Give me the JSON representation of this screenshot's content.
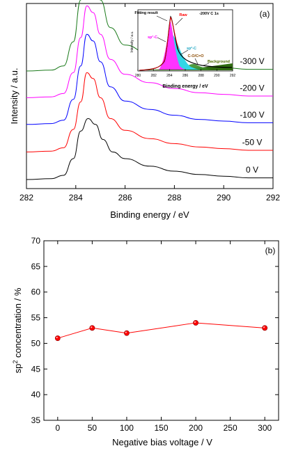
{
  "chart_data": [
    {
      "type": "line",
      "panel_label": "(a)",
      "xlabel": "Binding energy / eV",
      "ylabel": "Intensity / a.u.",
      "xlim": [
        282,
        292
      ],
      "x_ticks": [
        "282",
        "284",
        "286",
        "288",
        "290",
        "292"
      ],
      "y_ticks_shown": false,
      "series": [
        {
          "name": "0 V",
          "color": "#000000",
          "baseline": 0.0,
          "points": [
            [
              282,
              0
            ],
            [
              283,
              0.01
            ],
            [
              283.5,
              0.05
            ],
            [
              283.9,
              0.25
            ],
            [
              284.2,
              0.58
            ],
            [
              284.5,
              0.73
            ],
            [
              284.8,
              0.66
            ],
            [
              285.1,
              0.48
            ],
            [
              285.5,
              0.33
            ],
            [
              286,
              0.25
            ],
            [
              287,
              0.16
            ],
            [
              288,
              0.1
            ],
            [
              289,
              0.06
            ],
            [
              290,
              0.04
            ],
            [
              291,
              0.02
            ],
            [
              292,
              0.02
            ]
          ]
        },
        {
          "name": "-50 V",
          "color": "#ff0000",
          "baseline": 0.33,
          "points": [
            [
              282,
              0
            ],
            [
              283,
              0.01
            ],
            [
              283.5,
              0.05
            ],
            [
              283.9,
              0.27
            ],
            [
              284.2,
              0.6
            ],
            [
              284.45,
              0.95
            ],
            [
              284.7,
              0.88
            ],
            [
              285,
              0.65
            ],
            [
              285.4,
              0.4
            ],
            [
              286,
              0.26
            ],
            [
              287,
              0.16
            ],
            [
              288,
              0.1
            ],
            [
              289,
              0.06
            ],
            [
              290,
              0.04
            ],
            [
              291,
              0.02
            ],
            [
              292,
              0.02
            ]
          ]
        },
        {
          "name": "-100 V",
          "color": "#0000ff",
          "baseline": 0.66,
          "points": [
            [
              282,
              0
            ],
            [
              283,
              0.01
            ],
            [
              283.5,
              0.05
            ],
            [
              283.9,
              0.3
            ],
            [
              284.2,
              0.7
            ],
            [
              284.45,
              1.08
            ],
            [
              284.7,
              1.0
            ],
            [
              285,
              0.75
            ],
            [
              285.4,
              0.45
            ],
            [
              286,
              0.28
            ],
            [
              287,
              0.18
            ],
            [
              288,
              0.11
            ],
            [
              289,
              0.06
            ],
            [
              290,
              0.04
            ],
            [
              291,
              0.02
            ],
            [
              292,
              0.02
            ]
          ]
        },
        {
          "name": "-200 V",
          "color": "#ff00ff",
          "baseline": 0.98,
          "points": [
            [
              282,
              0
            ],
            [
              283,
              0.01
            ],
            [
              283.5,
              0.05
            ],
            [
              283.9,
              0.3
            ],
            [
              284.2,
              0.72
            ],
            [
              284.45,
              1.1
            ],
            [
              284.7,
              1.02
            ],
            [
              285,
              0.76
            ],
            [
              285.4,
              0.46
            ],
            [
              286,
              0.28
            ],
            [
              287,
              0.18
            ],
            [
              288,
              0.11
            ],
            [
              289,
              0.06
            ],
            [
              290,
              0.04
            ],
            [
              291,
              0.02
            ],
            [
              292,
              0.02
            ]
          ]
        },
        {
          "name": "-300 V",
          "color": "#1a7a1a",
          "baseline": 1.3,
          "points": [
            [
              282,
              0
            ],
            [
              283,
              0.01
            ],
            [
              283.5,
              0.06
            ],
            [
              283.9,
              0.35
            ],
            [
              284.2,
              0.85
            ],
            [
              284.45,
              1.25
            ],
            [
              284.7,
              1.15
            ],
            [
              285,
              0.85
            ],
            [
              285.4,
              0.52
            ],
            [
              286,
              0.31
            ],
            [
              287,
              0.2
            ],
            [
              288,
              0.12
            ],
            [
              289,
              0.07
            ],
            [
              290,
              0.04
            ],
            [
              291,
              0.02
            ],
            [
              292,
              0.02
            ]
          ]
        }
      ],
      "inset": {
        "title": "-200V C 1s",
        "xlabel": "Binding energy / eV",
        "ylabel": "Intensity / a.u.",
        "x_ticks": [
          "280",
          "282",
          "284",
          "286",
          "288",
          "290",
          "292"
        ],
        "labels": {
          "fitting": "Fitting result",
          "raw": "Raw",
          "sp3": "sp³-C",
          "sp2": "sp²-C",
          "co": "C-O/C=O",
          "background": "Background"
        },
        "colors": {
          "sp3": "#ff33ff",
          "sp2": "#33d6e6",
          "co": "#2a8a2a",
          "raw": "#ff0000",
          "fit": "#000000",
          "background": "#6b6b00"
        }
      }
    },
    {
      "type": "scatter",
      "panel_label": "(b)",
      "xlabel": "Negative bias voltage / V",
      "ylabel_pre": "sp",
      "ylabel_sup": "2",
      "ylabel_post": " concentration / %",
      "xlim": [
        -20,
        320
      ],
      "ylim": [
        35,
        70
      ],
      "x_ticks": [
        0,
        50,
        100,
        150,
        200,
        250,
        300
      ],
      "y_ticks": [
        35,
        40,
        45,
        50,
        55,
        60,
        65,
        70
      ],
      "marker_color": "#ff0000",
      "points": [
        [
          0,
          51
        ],
        [
          50,
          53
        ],
        [
          100,
          52
        ],
        [
          200,
          54
        ],
        [
          300,
          53
        ]
      ]
    }
  ]
}
